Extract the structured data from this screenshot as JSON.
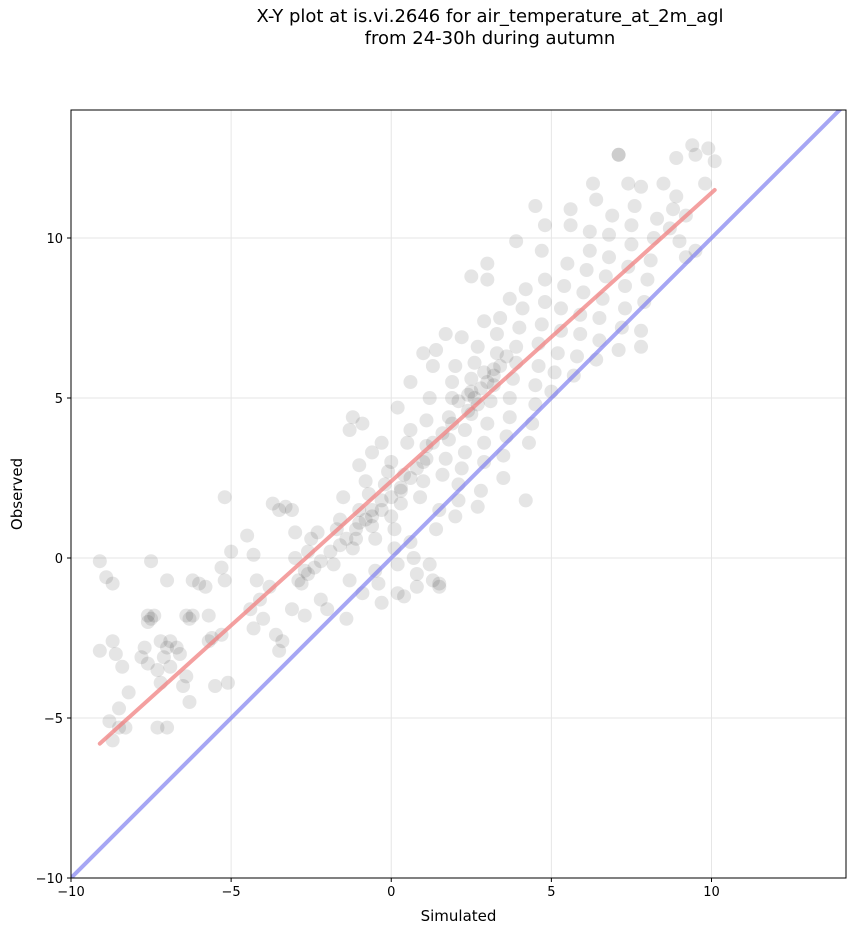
{
  "chart_data": {
    "type": "scatter",
    "title_lines": [
      "X-Y plot at is.vi.2646 for air_temperature_at_2m_agl",
      "from 24-30h during autumn"
    ],
    "xlabel": "Simulated",
    "ylabel": "Observed",
    "xlim": [
      -10,
      14.2
    ],
    "ylim": [
      -10,
      14
    ],
    "xticks": [
      -10,
      -5,
      0,
      5,
      10
    ],
    "yticks": [
      -10,
      -5,
      0,
      5,
      10
    ],
    "xtick_labels": [
      "−10",
      "−5",
      "0",
      "5",
      "10"
    ],
    "ytick_labels": [
      "−10",
      "−5",
      "0",
      "5",
      "10"
    ],
    "grid": true,
    "point_color": "#000000",
    "point_alpha": 0.1,
    "fit_line": {
      "color": "#f08080",
      "x": [
        -9.1,
        10.1
      ],
      "y": [
        -5.8,
        11.5
      ]
    },
    "identity_line": {
      "color": "#8080f0",
      "x": [
        -10,
        14.2
      ],
      "y": [
        -10,
        14.2
      ]
    },
    "points": [
      [
        -9.1,
        -0.1
      ],
      [
        -8.9,
        -0.6
      ],
      [
        -8.7,
        -0.8
      ],
      [
        -9.1,
        -2.9
      ],
      [
        -8.7,
        -2.6
      ],
      [
        -8.6,
        -3.0
      ],
      [
        -8.4,
        -3.4
      ],
      [
        -8.8,
        -5.1
      ],
      [
        -8.5,
        -5.3
      ],
      [
        -8.7,
        -5.7
      ],
      [
        -8.3,
        -5.3
      ],
      [
        -8.5,
        -4.7
      ],
      [
        -7.5,
        -0.1
      ],
      [
        -7.6,
        -1.8
      ],
      [
        -7.5,
        -1.9
      ],
      [
        -7.4,
        -1.8
      ],
      [
        -7.6,
        -2.0
      ],
      [
        -7.7,
        -2.8
      ],
      [
        -7.8,
        -3.1
      ],
      [
        -7.6,
        -3.3
      ],
      [
        -7.3,
        -3.5
      ],
      [
        -7.1,
        -3.1
      ],
      [
        -7.0,
        -2.8
      ],
      [
        -6.9,
        -2.6
      ],
      [
        -6.7,
        -2.8
      ],
      [
        -6.6,
        -3.0
      ],
      [
        -6.9,
        -3.4
      ],
      [
        -7.2,
        -3.9
      ],
      [
        -7.3,
        -5.3
      ],
      [
        -7.0,
        -5.3
      ],
      [
        -7.0,
        -0.7
      ],
      [
        -6.4,
        -1.8
      ],
      [
        -6.2,
        -1.8
      ],
      [
        -6.2,
        -0.7
      ],
      [
        -6.0,
        -0.8
      ],
      [
        -5.8,
        -0.9
      ],
      [
        -6.4,
        -3.7
      ],
      [
        -6.3,
        -4.5
      ],
      [
        -5.5,
        -4.0
      ],
      [
        -5.1,
        -3.9
      ],
      [
        -5.7,
        -1.8
      ],
      [
        -5.6,
        -2.5
      ],
      [
        -5.3,
        -2.4
      ],
      [
        -5.3,
        -0.3
      ],
      [
        -5.2,
        -0.7
      ],
      [
        -5.0,
        0.2
      ],
      [
        -5.2,
        1.9
      ],
      [
        -4.5,
        0.7
      ],
      [
        -4.3,
        0.1
      ],
      [
        -4.2,
        -0.7
      ],
      [
        -4.1,
        -1.3
      ],
      [
        -4.0,
        -1.9
      ],
      [
        -4.3,
        -2.2
      ],
      [
        -3.8,
        -0.9
      ],
      [
        -3.7,
        1.7
      ],
      [
        -3.5,
        1.5
      ],
      [
        -3.3,
        1.6
      ],
      [
        -3.1,
        1.5
      ],
      [
        -3.0,
        0.8
      ],
      [
        -3.0,
        0.0
      ],
      [
        -3.6,
        -2.4
      ],
      [
        -3.5,
        -2.9
      ],
      [
        -3.4,
        -2.6
      ],
      [
        -2.9,
        -0.7
      ],
      [
        -2.7,
        -0.4
      ],
      [
        -2.6,
        0.2
      ],
      [
        -2.5,
        0.6
      ],
      [
        -2.3,
        0.8
      ],
      [
        -2.2,
        -1.3
      ],
      [
        -2.0,
        -1.6
      ],
      [
        -1.8,
        -0.2
      ],
      [
        -1.7,
        0.9
      ],
      [
        -1.6,
        1.2
      ],
      [
        -1.5,
        1.9
      ],
      [
        -1.4,
        -1.9
      ],
      [
        -1.3,
        -0.7
      ],
      [
        -1.2,
        0.3
      ],
      [
        -1.1,
        0.6
      ],
      [
        -1.0,
        1.1
      ],
      [
        -1.0,
        1.5
      ],
      [
        -1.3,
        4.0
      ],
      [
        -1.2,
        4.4
      ],
      [
        -0.9,
        4.2
      ],
      [
        -1.0,
        2.9
      ],
      [
        -0.8,
        2.4
      ],
      [
        -0.7,
        2.0
      ],
      [
        -0.6,
        1.5
      ],
      [
        -0.6,
        1.0
      ],
      [
        -0.5,
        0.6
      ],
      [
        -0.5,
        -0.4
      ],
      [
        -0.4,
        -0.8
      ],
      [
        -0.3,
        1.8
      ],
      [
        -0.2,
        2.3
      ],
      [
        -0.1,
        2.7
      ],
      [
        0.0,
        3.0
      ],
      [
        0.0,
        1.3
      ],
      [
        0.1,
        0.9
      ],
      [
        0.1,
        0.3
      ],
      [
        0.2,
        -0.2
      ],
      [
        0.2,
        -1.1
      ],
      [
        0.3,
        1.7
      ],
      [
        0.3,
        2.2
      ],
      [
        0.4,
        2.6
      ],
      [
        0.5,
        3.6
      ],
      [
        0.6,
        4.0
      ],
      [
        0.6,
        0.5
      ],
      [
        0.7,
        0.0
      ],
      [
        0.8,
        -0.5
      ],
      [
        0.8,
        -0.9
      ],
      [
        0.9,
        1.9
      ],
      [
        1.0,
        2.4
      ],
      [
        1.0,
        3.0
      ],
      [
        1.1,
        3.5
      ],
      [
        1.1,
        4.3
      ],
      [
        1.2,
        5.0
      ],
      [
        1.3,
        6.0
      ],
      [
        1.4,
        6.5
      ],
      [
        1.4,
        0.9
      ],
      [
        1.5,
        1.5
      ],
      [
        1.5,
        -0.9
      ],
      [
        1.3,
        -0.7
      ],
      [
        1.6,
        2.6
      ],
      [
        1.7,
        3.1
      ],
      [
        1.8,
        3.7
      ],
      [
        1.8,
        4.4
      ],
      [
        1.9,
        5.0
      ],
      [
        1.9,
        5.5
      ],
      [
        2.0,
        6.0
      ],
      [
        2.1,
        1.8
      ],
      [
        2.1,
        2.3
      ],
      [
        2.2,
        2.8
      ],
      [
        2.3,
        3.3
      ],
      [
        2.3,
        4.0
      ],
      [
        2.4,
        4.6
      ],
      [
        2.5,
        5.2
      ],
      [
        2.5,
        5.6
      ],
      [
        2.6,
        6.1
      ],
      [
        2.7,
        6.6
      ],
      [
        2.5,
        8.8
      ],
      [
        3.0,
        8.7
      ],
      [
        2.7,
        1.6
      ],
      [
        2.8,
        2.1
      ],
      [
        2.9,
        3.0
      ],
      [
        2.9,
        3.6
      ],
      [
        3.0,
        4.2
      ],
      [
        3.1,
        4.9
      ],
      [
        3.2,
        5.4
      ],
      [
        3.2,
        5.9
      ],
      [
        3.3,
        6.4
      ],
      [
        3.3,
        7.0
      ],
      [
        3.4,
        7.5
      ],
      [
        3.5,
        2.5
      ],
      [
        3.5,
        3.2
      ],
      [
        3.6,
        3.8
      ],
      [
        3.7,
        4.4
      ],
      [
        3.7,
        5.0
      ],
      [
        3.8,
        5.6
      ],
      [
        3.9,
        6.1
      ],
      [
        3.9,
        6.6
      ],
      [
        4.0,
        7.2
      ],
      [
        4.1,
        7.8
      ],
      [
        4.2,
        8.4
      ],
      [
        4.2,
        1.8
      ],
      [
        4.3,
        3.6
      ],
      [
        4.4,
        4.2
      ],
      [
        4.5,
        4.8
      ],
      [
        4.5,
        5.4
      ],
      [
        4.6,
        6.0
      ],
      [
        4.6,
        6.7
      ],
      [
        4.7,
        7.3
      ],
      [
        4.8,
        8.0
      ],
      [
        4.8,
        8.7
      ],
      [
        3.9,
        9.9
      ],
      [
        4.5,
        11.0
      ],
      [
        4.7,
        9.6
      ],
      [
        4.8,
        10.4
      ],
      [
        5.0,
        5.2
      ],
      [
        5.1,
        5.8
      ],
      [
        5.2,
        6.4
      ],
      [
        5.3,
        7.1
      ],
      [
        5.3,
        7.8
      ],
      [
        5.4,
        8.5
      ],
      [
        5.5,
        9.2
      ],
      [
        5.6,
        10.4
      ],
      [
        5.7,
        5.7
      ],
      [
        5.8,
        6.3
      ],
      [
        5.9,
        7.0
      ],
      [
        5.9,
        7.6
      ],
      [
        6.0,
        8.3
      ],
      [
        6.1,
        9.0
      ],
      [
        6.2,
        9.6
      ],
      [
        6.2,
        10.2
      ],
      [
        6.3,
        11.7
      ],
      [
        6.4,
        6.2
      ],
      [
        6.5,
        6.8
      ],
      [
        6.5,
        7.5
      ],
      [
        6.6,
        8.1
      ],
      [
        6.7,
        8.8
      ],
      [
        6.8,
        9.4
      ],
      [
        6.8,
        10.1
      ],
      [
        6.9,
        10.7
      ],
      [
        7.1,
        12.6
      ],
      [
        7.1,
        6.5
      ],
      [
        7.2,
        7.2
      ],
      [
        7.3,
        7.8
      ],
      [
        7.3,
        8.5
      ],
      [
        7.4,
        9.1
      ],
      [
        7.5,
        9.8
      ],
      [
        7.5,
        10.4
      ],
      [
        7.6,
        11.0
      ],
      [
        7.4,
        11.7
      ],
      [
        7.8,
        11.6
      ],
      [
        7.8,
        6.6
      ],
      [
        7.8,
        7.1
      ],
      [
        7.9,
        8.0
      ],
      [
        8.0,
        8.7
      ],
      [
        8.1,
        9.3
      ],
      [
        8.2,
        10.0
      ],
      [
        8.3,
        10.6
      ],
      [
        8.5,
        11.7
      ],
      [
        8.7,
        10.3
      ],
      [
        8.8,
        10.9
      ],
      [
        8.9,
        11.3
      ],
      [
        9.0,
        9.9
      ],
      [
        9.2,
        10.7
      ],
      [
        9.2,
        9.4
      ],
      [
        8.9,
        12.5
      ],
      [
        9.4,
        12.9
      ],
      [
        9.5,
        12.6
      ],
      [
        9.8,
        11.7
      ],
      [
        9.9,
        12.8
      ],
      [
        10.1,
        12.4
      ],
      [
        9.5,
        9.6
      ],
      [
        6.4,
        11.2
      ],
      [
        5.6,
        10.9
      ],
      [
        7.1,
        12.6
      ],
      [
        2.0,
        1.3
      ],
      [
        1.2,
        -0.2
      ],
      [
        0.4,
        -1.2
      ],
      [
        1.5,
        -0.8
      ],
      [
        -0.9,
        -1.1
      ],
      [
        -0.3,
        -1.4
      ],
      [
        -2.7,
        -1.8
      ],
      [
        -3.1,
        -1.6
      ],
      [
        -4.4,
        -1.6
      ],
      [
        -5.7,
        -2.6
      ],
      [
        -6.3,
        -1.9
      ],
      [
        -7.2,
        -2.6
      ],
      [
        -8.2,
        -4.2
      ],
      [
        -6.5,
        -4.0
      ],
      [
        2.2,
        6.9
      ],
      [
        2.9,
        7.4
      ],
      [
        3.7,
        8.1
      ],
      [
        3.0,
        9.2
      ],
      [
        1.7,
        7.0
      ],
      [
        1.0,
        6.4
      ],
      [
        0.6,
        5.5
      ],
      [
        -0.3,
        3.6
      ],
      [
        -0.6,
        3.3
      ],
      [
        0.2,
        4.7
      ],
      [
        2.6,
        5.0
      ],
      [
        2.8,
        5.3
      ],
      [
        3.0,
        5.5
      ],
      [
        2.4,
        5.1
      ],
      [
        2.7,
        4.8
      ],
      [
        3.2,
        5.7
      ],
      [
        2.9,
        5.8
      ],
      [
        3.4,
        6.0
      ],
      [
        3.6,
        6.3
      ],
      [
        2.5,
        4.5
      ],
      [
        2.1,
        4.9
      ],
      [
        1.9,
        4.2
      ],
      [
        1.6,
        3.9
      ],
      [
        1.3,
        3.6
      ],
      [
        1.1,
        3.1
      ],
      [
        0.8,
        2.8
      ],
      [
        0.6,
        2.5
      ],
      [
        0.3,
        2.1
      ],
      [
        0.0,
        1.9
      ],
      [
        -0.3,
        1.5
      ],
      [
        -0.6,
        1.3
      ],
      [
        -0.8,
        1.2
      ],
      [
        -1.1,
        0.9
      ],
      [
        -1.4,
        0.6
      ],
      [
        -1.6,
        0.4
      ],
      [
        -1.9,
        0.2
      ],
      [
        -2.2,
        -0.1
      ],
      [
        -2.4,
        -0.3
      ],
      [
        -2.6,
        -0.5
      ],
      [
        -2.8,
        -0.8
      ]
    ]
  }
}
